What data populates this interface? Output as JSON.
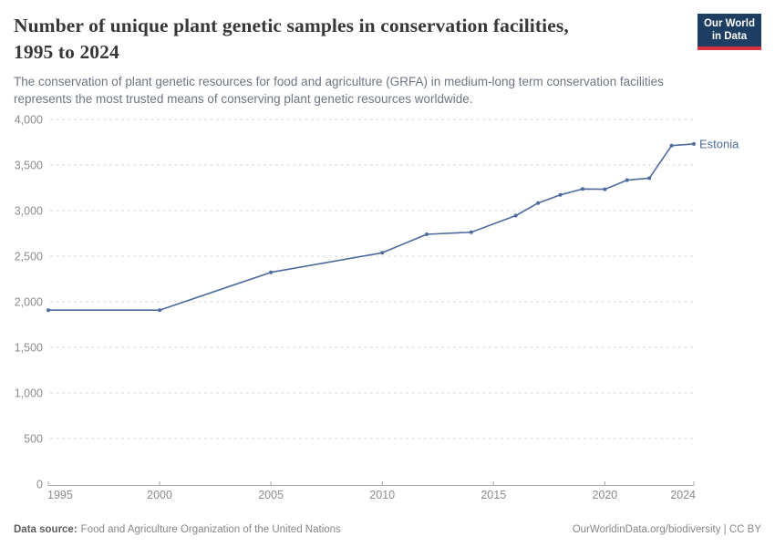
{
  "header": {
    "title_line1": "Number of unique plant genetic samples in conservation facilities,",
    "title_line2": "1995 to 2024",
    "subtitle_line1": "The conservation of plant genetic resources for food and agriculture (GRFA) in medium-long term conservation facilities",
    "subtitle_line2": "represents the most trusted means of conserving plant genetic resources worldwide."
  },
  "logo": {
    "line1": "Our World",
    "line2": "in Data"
  },
  "footer": {
    "source_label": "Data source:",
    "source_value": "Food and Agriculture Organization of the United Nations",
    "credit": "OurWorldinData.org/biodiversity | CC BY"
  },
  "colors": {
    "line": "#4c6a9c",
    "grid": "#dadada",
    "axis": "#a9a9a9",
    "axis_text": "#8c8c8c",
    "title": "#383838",
    "subtitle": "#6e7581",
    "logo_bg": "#1d3d63",
    "logo_red": "#d7343f",
    "footer_text": "#878787"
  },
  "chart_data": {
    "type": "line",
    "title": "Number of unique plant genetic samples in conservation facilities, 1995 to 2024",
    "xlabel": "",
    "ylabel": "",
    "xlim": [
      1995,
      2024
    ],
    "ylim": [
      0,
      4000
    ],
    "x_ticks": [
      1995,
      2000,
      2005,
      2010,
      2015,
      2020,
      2024
    ],
    "y_ticks": [
      0,
      500,
      1000,
      1500,
      2000,
      2500,
      3000,
      3500,
      4000
    ],
    "grid": "horizontal-dashed",
    "legend_position": "end-of-line-label",
    "series": [
      {
        "name": "Estonia",
        "color": "#4c6a9c",
        "x": [
          1995,
          2000,
          2005,
          2010,
          2012,
          2014,
          2016,
          2017,
          2018,
          2019,
          2020,
          2021,
          2022,
          2023,
          2024
        ],
        "y": [
          1908,
          1908,
          2323,
          2537,
          2740,
          2763,
          2945,
          3083,
          3172,
          3237,
          3234,
          3334,
          3356,
          3713,
          3731
        ]
      }
    ]
  }
}
